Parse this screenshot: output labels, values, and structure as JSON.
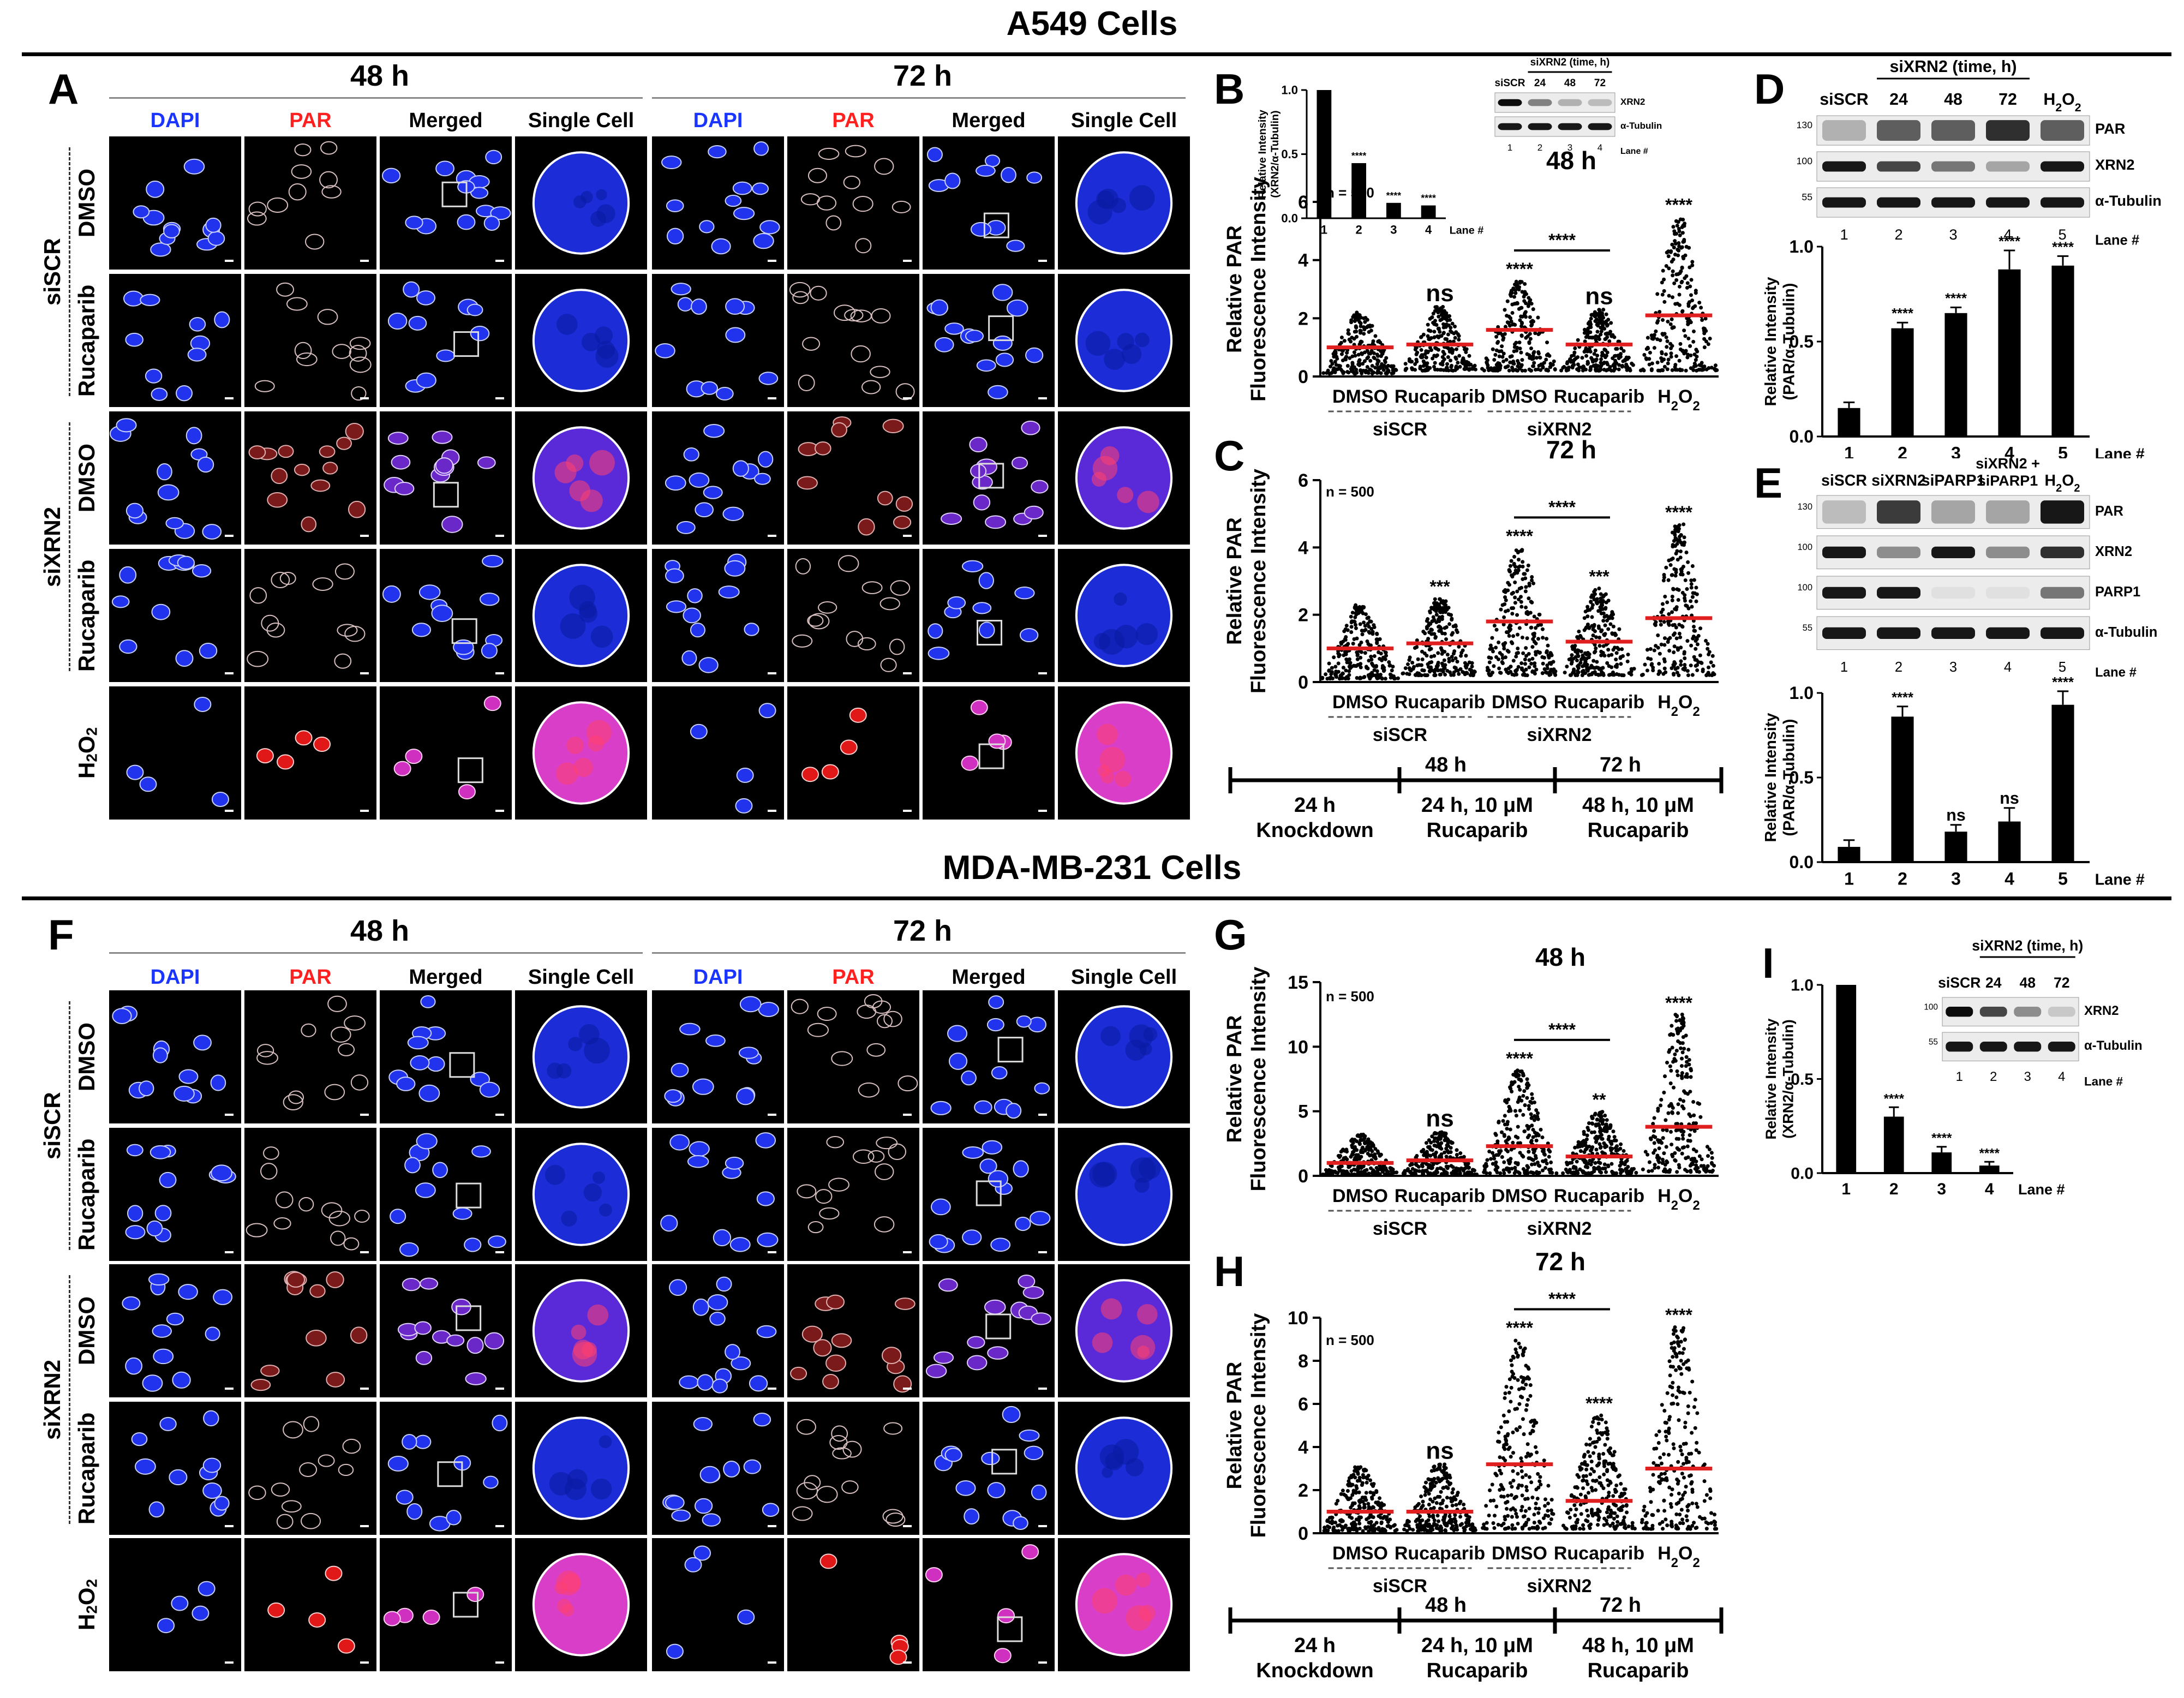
{
  "headers": {
    "top": "A549 Cells",
    "bottom": "MDA-MB-231 Cells"
  },
  "panel_letters": {
    "A": "A",
    "B": "B",
    "C": "C",
    "D": "D",
    "E": "E",
    "F": "F",
    "G": "G",
    "H": "H",
    "I": "I"
  },
  "micrographs": {
    "time_48": "48 h",
    "time_72": "72 h",
    "columns": [
      "DAPI",
      "PAR",
      "Merged",
      "Single Cell"
    ],
    "column_colors": [
      "#1a35ff",
      "#ff2020",
      "#000000",
      "#000000"
    ],
    "rows": [
      "DMSO",
      "Rucaparib",
      "DMSO",
      "Rucaparib",
      "H2O2"
    ],
    "groups": [
      "siSCR",
      "siXRN2"
    ]
  },
  "scatter_axis_label": [
    "Relative PAR",
    "Fluorescence Intensity"
  ],
  "scatter_groups": [
    "DMSO",
    "Rucaparib",
    "DMSO",
    "Rucaparib",
    "H2O2"
  ],
  "scatter_bracket": [
    "siSCR",
    "siXRN2"
  ],
  "timeline": {
    "ticks": [
      "48 h",
      "72 h"
    ],
    "segments": [
      [
        "24 h",
        "Knockdown"
      ],
      [
        "24 h, 10 μM",
        "Rucaparib"
      ],
      [
        "48 h, 10 μM",
        "Rucaparib"
      ]
    ]
  },
  "chart_data": [
    {
      "panel": "B",
      "type": "scatter",
      "title": "48 h",
      "n_label": "n = 500",
      "ylabel": "Relative PAR Fluorescence Intensity",
      "categories": [
        "DMSO",
        "Rucaparib",
        "DMSO",
        "Rucaparib",
        "H2O2"
      ],
      "ylim": [
        0,
        6
      ],
      "yticks": [
        0,
        2,
        4,
        6
      ],
      "means": [
        1.0,
        1.1,
        1.6,
        1.1,
        2.1
      ],
      "ranges": [
        [
          0.1,
          2.2
        ],
        [
          0.2,
          2.4
        ],
        [
          0.2,
          3.3
        ],
        [
          0.2,
          2.3
        ],
        [
          0.2,
          5.5
        ]
      ],
      "significance": [
        "",
        "ns",
        "****",
        "ns",
        "****"
      ],
      "comparison": {
        "label": "****",
        "between": [
          2,
          3
        ]
      },
      "inset": {
        "type": "bar",
        "ylabel": "Relative Intensity (XRN2/α-Tubulin)",
        "categories": [
          "1",
          "2",
          "3",
          "4"
        ],
        "values": [
          1.0,
          0.43,
          0.12,
          0.1
        ],
        "ylim": [
          0,
          1.0
        ],
        "yticks": [
          "0.0",
          "0.5",
          "1.0"
        ],
        "xlabel": "Lane #",
        "significance": [
          "",
          "****",
          "****",
          "****"
        ],
        "blot": {
          "header": "siXRN2 (time, h)",
          "lanes_top": [
            "siSCR",
            "24",
            "48",
            "72"
          ],
          "bands": [
            "XRN2",
            "α-Tubulin"
          ],
          "lane_numbers": [
            "1",
            "2",
            "3",
            "4"
          ],
          "lane_label": "Lane #"
        }
      }
    },
    {
      "panel": "C",
      "type": "scatter",
      "title": "72 h",
      "n_label": "n = 500",
      "ylabel": "Relative PAR Fluorescence Intensity",
      "categories": [
        "DMSO",
        "Rucaparib",
        "DMSO",
        "Rucaparib",
        "H2O2"
      ],
      "ylim": [
        0,
        6
      ],
      "yticks": [
        0,
        2,
        4,
        6
      ],
      "means": [
        1.0,
        1.15,
        1.8,
        1.2,
        1.9
      ],
      "ranges": [
        [
          0.1,
          2.3
        ],
        [
          0.2,
          2.5
        ],
        [
          0.2,
          4.0
        ],
        [
          0.2,
          2.8
        ],
        [
          0.2,
          4.7
        ]
      ],
      "significance": [
        "",
        "***",
        "****",
        "***",
        "****"
      ],
      "comparison": {
        "label": "****",
        "between": [
          2,
          3
        ]
      }
    },
    {
      "panel": "D",
      "type": "bar",
      "ylabel": "Relative Intensity (PAR/α-Tubulin)",
      "categories": [
        "1",
        "2",
        "3",
        "4",
        "5"
      ],
      "values": [
        0.15,
        0.57,
        0.65,
        0.88,
        0.9
      ],
      "errors": [
        0.03,
        0.03,
        0.03,
        0.1,
        0.05
      ],
      "ylim": [
        0,
        1.0
      ],
      "yticks": [
        "0.0",
        "0.5",
        "1.0"
      ],
      "xlabel": "Lane #",
      "significance": [
        "",
        "****",
        "****",
        "****",
        "****"
      ],
      "blot": {
        "header": "siXRN2 (time, h)",
        "lanes_top": [
          "siSCR",
          "24",
          "48",
          "72",
          "H2O2"
        ],
        "bands": [
          "PAR",
          "XRN2",
          "α-Tubulin"
        ],
        "markers": [
          "130",
          "100",
          "55"
        ],
        "lane_numbers": [
          "1",
          "2",
          "3",
          "4",
          "5"
        ],
        "lane_label": "Lane #"
      }
    },
    {
      "panel": "E",
      "type": "bar",
      "ylabel": "Relative Intensity (PAR/α-Tubulin)",
      "categories": [
        "1",
        "2",
        "3",
        "4",
        "5"
      ],
      "values": [
        0.09,
        0.86,
        0.18,
        0.24,
        0.93
      ],
      "errors": [
        0.04,
        0.06,
        0.04,
        0.08,
        0.08
      ],
      "ylim": [
        0,
        1.0
      ],
      "yticks": [
        "0.0",
        "0.5",
        "1.0"
      ],
      "xlabel": "Lane #",
      "significance": [
        "",
        "****",
        "ns",
        "ns",
        "****"
      ],
      "blot": {
        "lanes_top": [
          "siSCR",
          "siXRN2",
          "siPARP1",
          "siXRN2 + siPARP1",
          "H2O2"
        ],
        "bands": [
          "PAR",
          "XRN2",
          "PARP1",
          "α-Tubulin"
        ],
        "markers": [
          "130",
          "100",
          "100",
          "55"
        ],
        "lane_numbers": [
          "1",
          "2",
          "3",
          "4",
          "5"
        ],
        "lane_label": "Lane #"
      }
    },
    {
      "panel": "G",
      "type": "scatter",
      "title": "48 h",
      "n_label": "n = 500",
      "ylabel": "Relative PAR Fluorescence Intensity",
      "categories": [
        "DMSO",
        "Rucaparib",
        "DMSO",
        "Rucaparib",
        "H2O2"
      ],
      "ylim": [
        0,
        15
      ],
      "yticks": [
        0,
        5,
        10,
        15
      ],
      "means": [
        1.0,
        1.2,
        2.3,
        1.5,
        3.8
      ],
      "ranges": [
        [
          0.1,
          3.2
        ],
        [
          0.1,
          3.4
        ],
        [
          0.2,
          8.2
        ],
        [
          0.2,
          5.0
        ],
        [
          0.3,
          12.5
        ]
      ],
      "significance": [
        "",
        "ns",
        "****",
        "**",
        "****"
      ],
      "comparison": {
        "label": "****",
        "between": [
          2,
          3
        ]
      }
    },
    {
      "panel": "H",
      "type": "scatter",
      "title": "72 h",
      "n_label": "n = 500",
      "ylabel": "Relative PAR Fluorescence Intensity",
      "categories": [
        "DMSO",
        "Rucaparib",
        "DMSO",
        "Rucaparib",
        "H2O2"
      ],
      "ylim": [
        0,
        10
      ],
      "yticks": [
        0,
        2,
        4,
        6,
        8,
        10
      ],
      "means": [
        1.0,
        1.0,
        3.2,
        1.5,
        3.0
      ],
      "ranges": [
        [
          0.1,
          3.1
        ],
        [
          0.1,
          3.2
        ],
        [
          0.2,
          9.0
        ],
        [
          0.2,
          5.5
        ],
        [
          0.2,
          9.6
        ]
      ],
      "significance": [
        "",
        "ns",
        "****",
        "****",
        "****"
      ],
      "comparison": {
        "label": "****",
        "between": [
          2,
          3
        ]
      }
    },
    {
      "panel": "I",
      "type": "bar",
      "ylabel": "Relative Intensity (XRN2/α-Tubulin)",
      "categories": [
        "1",
        "2",
        "3",
        "4"
      ],
      "values": [
        1.0,
        0.3,
        0.11,
        0.04
      ],
      "errors": [
        0,
        0.05,
        0.03,
        0.02
      ],
      "ylim": [
        0,
        1.0
      ],
      "yticks": [
        "0.0",
        "0.5",
        "1.0"
      ],
      "xlabel": "Lane #",
      "significance": [
        "",
        "****",
        "****",
        "****"
      ],
      "blot": {
        "header": "siXRN2 (time, h)",
        "lanes_top": [
          "siSCR",
          "24",
          "48",
          "72"
        ],
        "bands": [
          "XRN2",
          "α-Tubulin"
        ],
        "markers": [
          "100",
          "55"
        ],
        "lane_numbers": [
          "1",
          "2",
          "3",
          "4"
        ],
        "lane_label": "Lane #"
      }
    }
  ]
}
